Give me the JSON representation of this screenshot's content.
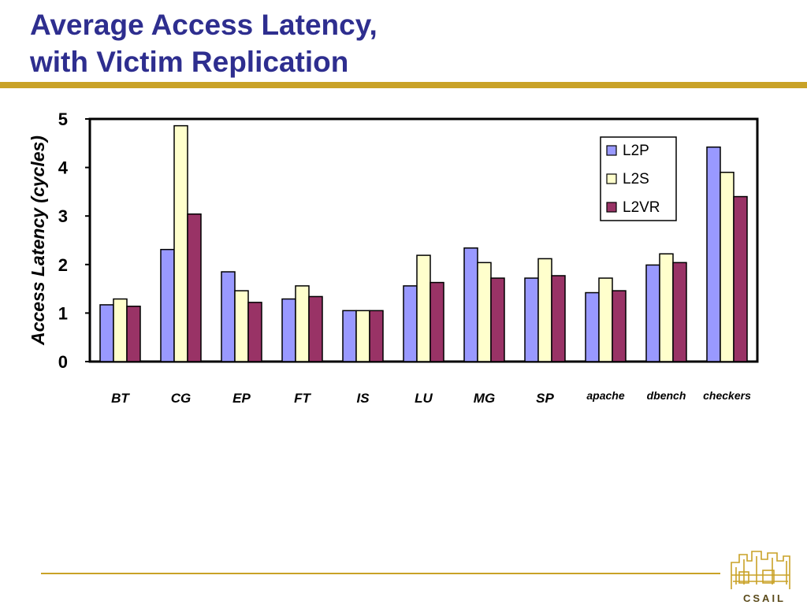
{
  "slide": {
    "title_line1": "Average Access Latency,",
    "title_line2": "with Victim Replication",
    "logo_text": "CSAIL"
  },
  "colors": {
    "title": "#2e2e8f",
    "rule": "#c9a227",
    "L2P": "#9999ff",
    "L2S": "#ffffcc",
    "L2VR": "#993366"
  },
  "chart_data": {
    "type": "bar",
    "title": "",
    "xlabel": "",
    "ylabel": "Access Latency (cycles)",
    "ylim": [
      0,
      5
    ],
    "yticks": [
      "0",
      "1",
      "2",
      "3",
      "4",
      "5"
    ],
    "grid": false,
    "legend_position": "top-right",
    "categories": [
      "BT",
      "CG",
      "EP",
      "FT",
      "IS",
      "LU",
      "MG",
      "SP",
      "apache",
      "dbench",
      "checkers"
    ],
    "series": [
      {
        "name": "L2P",
        "values": [
          1.17,
          2.31,
          1.85,
          1.29,
          1.05,
          1.56,
          2.34,
          1.72,
          1.42,
          1.99,
          4.42
        ]
      },
      {
        "name": "L2S",
        "values": [
          1.29,
          4.86,
          1.46,
          1.56,
          1.05,
          2.19,
          2.04,
          2.12,
          1.72,
          2.22,
          3.9
        ]
      },
      {
        "name": "L2VR",
        "values": [
          1.14,
          3.04,
          1.22,
          1.34,
          1.05,
          1.63,
          1.72,
          1.77,
          1.46,
          2.04,
          3.4
        ]
      }
    ]
  }
}
